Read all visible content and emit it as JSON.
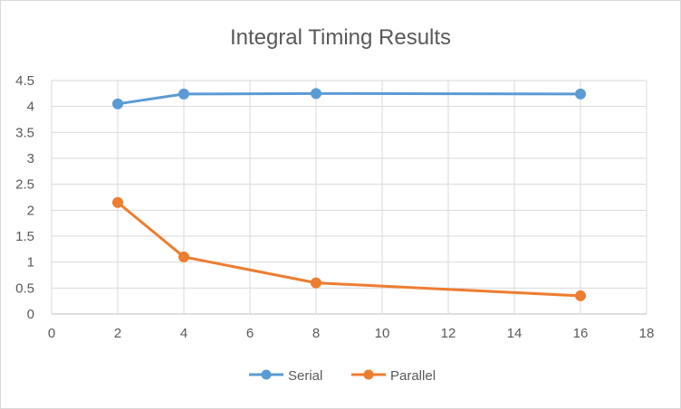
{
  "chart_data": {
    "type": "scatter",
    "title": "Integral Timing Results",
    "xlabel": "",
    "ylabel": "",
    "xlim": [
      0,
      18
    ],
    "ylim": [
      0,
      4.5
    ],
    "x_ticks": [
      0,
      2,
      4,
      6,
      8,
      10,
      12,
      14,
      16,
      18
    ],
    "y_ticks": [
      0,
      0.5,
      1,
      1.5,
      2,
      2.5,
      3,
      3.5,
      4,
      4.5
    ],
    "grid": true,
    "legend_position": "bottom",
    "lines_connected": true,
    "series": [
      {
        "name": "Serial",
        "color": "#5b9bd5",
        "x": [
          2,
          4,
          8,
          16
        ],
        "y": [
          4.05,
          4.24,
          4.25,
          4.24
        ]
      },
      {
        "name": "Parallel",
        "color": "#ed7d31",
        "x": [
          2,
          4,
          8,
          16
        ],
        "y": [
          2.15,
          1.1,
          0.6,
          0.35
        ]
      }
    ]
  }
}
